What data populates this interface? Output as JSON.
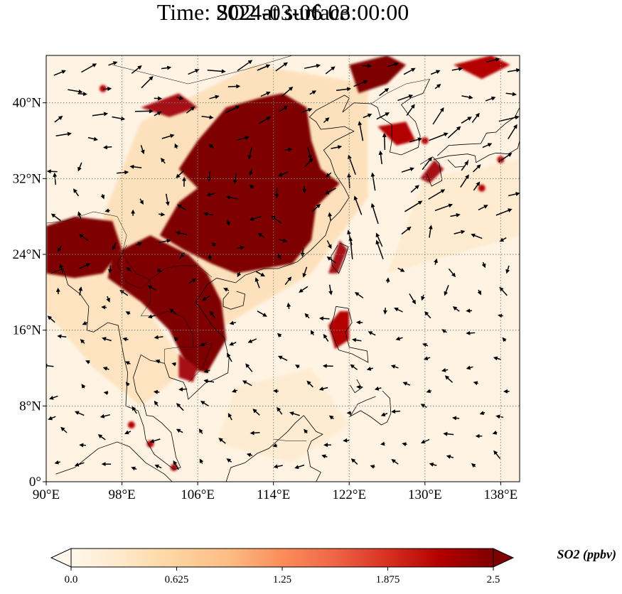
{
  "title": {
    "line1": "SO2 at surface",
    "line2": "Time: 2024-03-06 03:00:00"
  },
  "map": {
    "variable": "SO2",
    "level": "surface",
    "lon_range": [
      90,
      140
    ],
    "lat_range": [
      0,
      45
    ],
    "x_ticks": [
      90,
      98,
      106,
      114,
      122,
      130,
      138
    ],
    "x_tick_labels": [
      "90°E",
      "98°E",
      "106°E",
      "114°E",
      "122°E",
      "130°E",
      "138°E"
    ],
    "y_ticks": [
      0,
      8,
      16,
      24,
      32,
      40
    ],
    "y_tick_labels": [
      "0°",
      "8°N",
      "16°N",
      "24°N",
      "32°N",
      "40°N"
    ],
    "gridlines": "dotted",
    "coastlines": true,
    "wind_vectors": true
  },
  "colorbar": {
    "label": "SO2 (ppbv)",
    "min": 0.0,
    "max": 2.5,
    "ticks": [
      0.0,
      0.625,
      1.25,
      1.875,
      2.5
    ],
    "tick_labels": [
      "0.0",
      "0.625",
      "1.25",
      "1.875",
      "2.5"
    ],
    "colormap": "OrRd",
    "extend": "both",
    "colors": [
      "#fff7ec",
      "#fee8c8",
      "#fdd49e",
      "#fdbb84",
      "#fc8d59",
      "#ef6548",
      "#d7301f",
      "#b30000",
      "#7f0000"
    ]
  },
  "colors": {
    "background_low": "#fff3e3",
    "high_concentration": "#7f0000",
    "gridline": "#808080"
  }
}
